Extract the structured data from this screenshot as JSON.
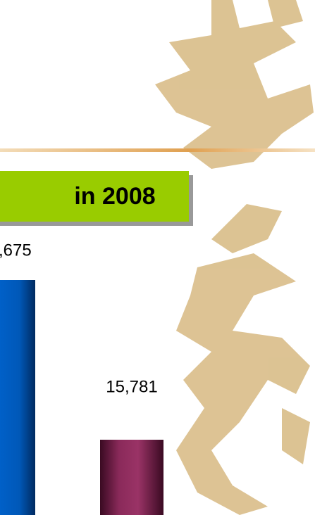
{
  "heading": "in 2008",
  "bars": [
    {
      "label": ",675"
    },
    {
      "label": "15,781"
    }
  ]
}
